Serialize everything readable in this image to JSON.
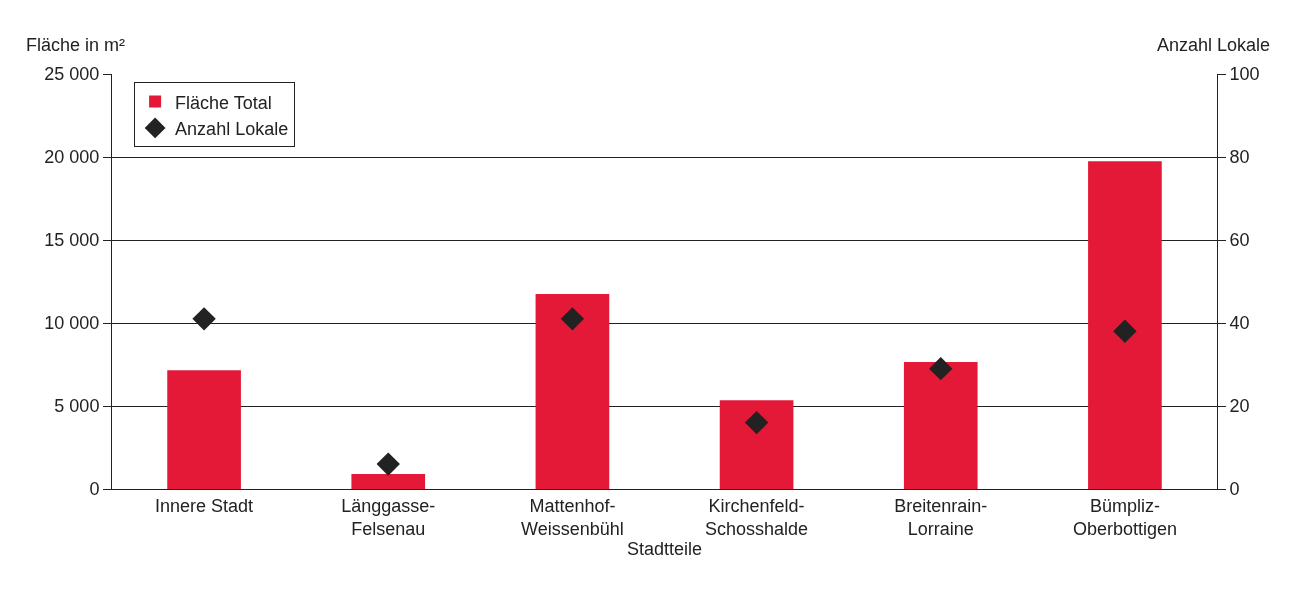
{
  "chart_data": {
    "type": "bar",
    "xlabel": "Stadtteile",
    "ylabel": "Fläche in m²",
    "y2label": "Anzahl Lokale",
    "categories": [
      "Innere Stadt",
      "Länggasse-Felsenau",
      "Mattenhof-Weissenbühl",
      "Kirchenfeld-Schosshalde",
      "Breitenrain-Lorraine",
      "Bümpliz-Oberbottigen"
    ],
    "series": [
      {
        "name": "Fläche Total",
        "color": "#e31937",
        "values": [
          7150,
          900,
          11750,
          5350,
          7650,
          19750
        ]
      },
      {
        "name": "Anzahl Lokale",
        "type": "scatter",
        "axis": "y2",
        "color": "#222222",
        "values": [
          41,
          6,
          41,
          16,
          29,
          38
        ]
      }
    ],
    "ylim": [
      0,
      25000
    ],
    "yticks": [
      0,
      {
        "value": 5000,
        "label": "5 000"
      },
      {
        "value": 10000,
        "label": "10 000"
      },
      {
        "value": 15000,
        "label": "15 000"
      },
      {
        "value": 20000,
        "label": "20 000"
      },
      {
        "value": 25000,
        "label": "25 000"
      }
    ],
    "y2lim": [
      0,
      100
    ],
    "y2ticks": [
      0,
      20,
      40,
      60,
      80,
      100
    ],
    "grid": "y",
    "legend": "top left",
    "marker": "diamond"
  }
}
